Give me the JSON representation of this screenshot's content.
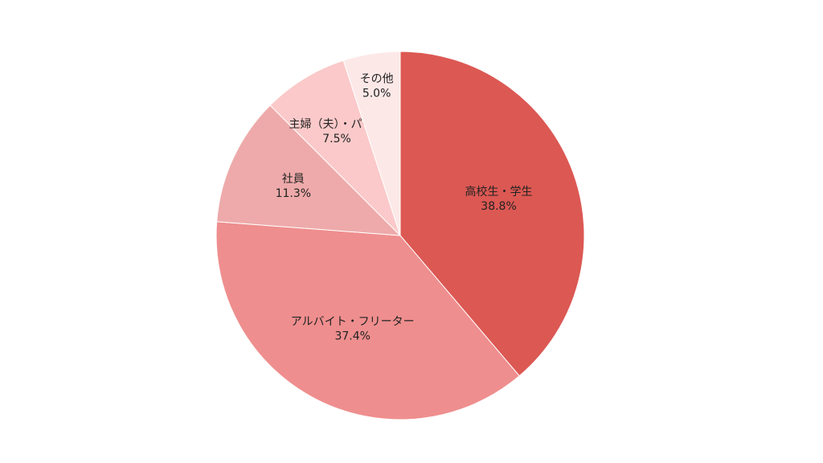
{
  "chart_data": {
    "type": "pie",
    "categories": [
      "高校生・学生",
      "アルバイト・フリーター",
      "社員",
      "主婦（夫）・パート",
      "その他"
    ],
    "values": [
      38.8,
      37.4,
      11.3,
      7.5,
      5.0
    ],
    "value_labels": [
      "38.8%",
      "37.4%",
      "11.3%",
      "7.5%",
      "5.0%"
    ],
    "colors": [
      "#dc5853",
      "#ef8e8e",
      "#eeaaaa",
      "#fbc9c9",
      "#fde8e8"
    ]
  }
}
